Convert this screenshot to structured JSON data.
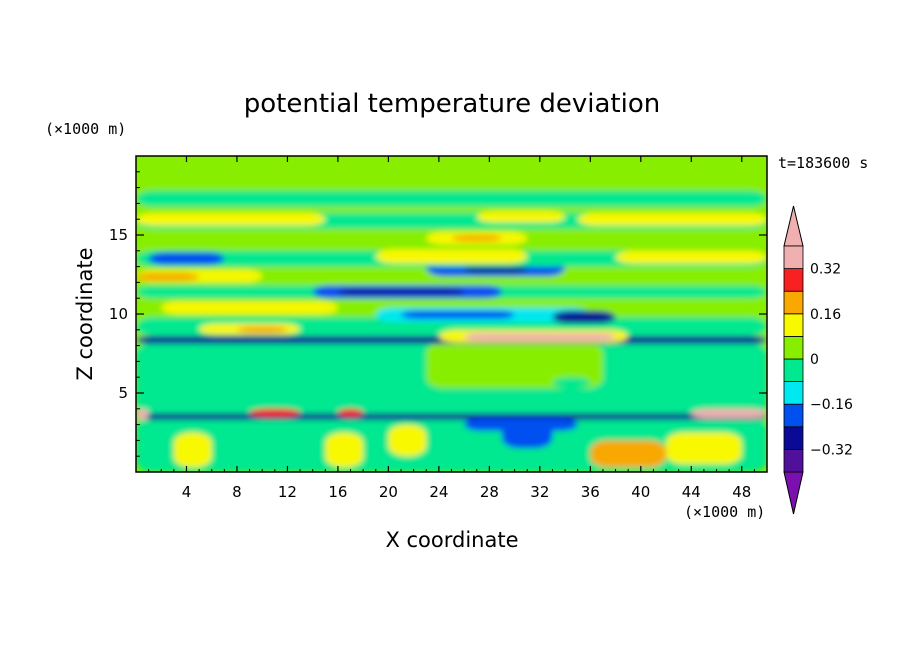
{
  "chart_data": {
    "type": "heatmap",
    "title": "potential temperature deviation",
    "xlabel": "X coordinate",
    "ylabel": "Z coordinate",
    "x_unit": "(×1000 m)",
    "y_unit": "(×1000 m)",
    "time_label": "t=183600 s",
    "xlim": [
      0,
      50
    ],
    "ylim": [
      0,
      20
    ],
    "x_ticks": [
      4,
      8,
      12,
      16,
      20,
      24,
      28,
      32,
      36,
      40,
      44,
      48
    ],
    "y_ticks": [
      5,
      10,
      15
    ],
    "x_tick_labels": [
      "4",
      "8",
      "12",
      "16",
      "20",
      "24",
      "28",
      "32",
      "36",
      "40",
      "44",
      "48"
    ],
    "y_tick_labels": [
      "5",
      "10",
      "15"
    ],
    "grid": false,
    "colorbar": {
      "placement": "right",
      "levels": [
        -0.4,
        -0.32,
        -0.24,
        -0.16,
        -0.08,
        0,
        0.08,
        0.16,
        0.24,
        0.32,
        0.4
      ],
      "tick_values": [
        -0.32,
        -0.16,
        0,
        0.16,
        0.32
      ],
      "tick_labels": [
        "−0.32",
        "−0.16",
        "0",
        "0.16",
        "0.32"
      ],
      "colors": [
        "#7a10b0",
        "#50109a",
        "#0a0a96",
        "#0050f0",
        "#00e8f0",
        "#00e890",
        "#88ee00",
        "#f8f800",
        "#f8a800",
        "#f82020",
        "#f0b0b0"
      ]
    },
    "regions": [
      {
        "x0": 0,
        "x1": 50,
        "z0": 0,
        "z1": 20,
        "v": 0.04
      },
      {
        "x0": 0,
        "x1": 50,
        "z0": 0,
        "z1": 3.5,
        "v": -0.04
      },
      {
        "x0": 0,
        "x1": 50,
        "z0": 3.5,
        "z1": 8.2,
        "v": -0.04
      },
      {
        "x0": 23,
        "x1": 37,
        "z0": 5.3,
        "z1": 8.2,
        "v": 0.04
      },
      {
        "x0": 33,
        "x1": 36,
        "z0": 5.3,
        "z1": 6,
        "v": -0.04
      },
      {
        "x0": 0,
        "x1": 50,
        "z0": 8.1,
        "z1": 8.6,
        "v": -0.28
      },
      {
        "x0": 0,
        "x1": 50,
        "z0": 8.6,
        "z1": 9.8,
        "v": -0.04
      },
      {
        "x0": 5,
        "x1": 13,
        "z0": 8.7,
        "z1": 9.4,
        "v": 0.12
      },
      {
        "x0": 8,
        "x1": 12,
        "z0": 8.8,
        "z1": 9.2,
        "v": 0.2
      },
      {
        "x0": 24,
        "x1": 39,
        "z0": 8.2,
        "z1": 9.0,
        "v": 0.12
      },
      {
        "x0": 26,
        "x1": 38,
        "z0": 8.3,
        "z1": 8.8,
        "v": 0.36
      },
      {
        "x0": 0,
        "x1": 50,
        "z0": 9.8,
        "z1": 11,
        "v": 0.04
      },
      {
        "x0": 2,
        "x1": 16,
        "z0": 10,
        "z1": 10.8,
        "v": 0.12
      },
      {
        "x0": 19,
        "x1": 36,
        "z0": 9.5,
        "z1": 10.4,
        "v": -0.12
      },
      {
        "x0": 21,
        "x1": 30,
        "z0": 9.7,
        "z1": 10.2,
        "v": -0.2
      },
      {
        "x0": 33,
        "x1": 38,
        "z0": 9.4,
        "z1": 10.2,
        "v": -0.28
      },
      {
        "x0": 0,
        "x1": 50,
        "z0": 11,
        "z1": 11.8,
        "v": -0.04
      },
      {
        "x0": 14,
        "x1": 29,
        "z0": 11.0,
        "z1": 11.8,
        "v": -0.2
      },
      {
        "x0": 16,
        "x1": 26,
        "z0": 11.2,
        "z1": 11.6,
        "v": -0.28
      },
      {
        "x0": 0,
        "x1": 50,
        "z0": 11.8,
        "z1": 12.8,
        "v": 0.04
      },
      {
        "x0": 0,
        "x1": 10,
        "z0": 12.0,
        "z1": 12.8,
        "v": 0.12
      },
      {
        "x0": 0,
        "x1": 5,
        "z0": 12.1,
        "z1": 12.6,
        "v": 0.2
      },
      {
        "x0": 23,
        "x1": 34,
        "z0": 12.4,
        "z1": 13.4,
        "v": -0.2
      },
      {
        "x0": 26,
        "x1": 31,
        "z0": 12.6,
        "z1": 13.1,
        "v": -0.28
      },
      {
        "x0": 0,
        "x1": 50,
        "z0": 13,
        "z1": 14,
        "v": -0.04
      },
      {
        "x0": 1,
        "x1": 7,
        "z0": 13.1,
        "z1": 13.9,
        "v": -0.2
      },
      {
        "x0": 19,
        "x1": 31,
        "z0": 13.2,
        "z1": 14.1,
        "v": 0.12
      },
      {
        "x0": 38,
        "x1": 50,
        "z0": 13.2,
        "z1": 14.0,
        "v": 0.12
      },
      {
        "x0": 0,
        "x1": 50,
        "z0": 14.1,
        "z1": 15.2,
        "v": 0.04
      },
      {
        "x0": 23,
        "x1": 31,
        "z0": 14.4,
        "z1": 15.2,
        "v": 0.12
      },
      {
        "x0": 25,
        "x1": 29,
        "z0": 14.6,
        "z1": 15.0,
        "v": 0.2
      },
      {
        "x0": 0,
        "x1": 50,
        "z0": 15.4,
        "z1": 16.4,
        "v": -0.04
      },
      {
        "x0": 0,
        "x1": 15,
        "z0": 15.6,
        "z1": 16.4,
        "v": 0.12
      },
      {
        "x0": 27,
        "x1": 34,
        "z0": 15.8,
        "z1": 16.5,
        "v": 0.12
      },
      {
        "x0": 35,
        "x1": 50,
        "z0": 15.6,
        "z1": 16.4,
        "v": 0.12
      },
      {
        "x0": 0,
        "x1": 50,
        "z0": 16.8,
        "z1": 17.8,
        "v": -0.04
      },
      {
        "x0": 0,
        "x1": 50,
        "z0": 18.2,
        "z1": 20,
        "v": 0.04
      },
      {
        "x0": 0,
        "x1": 50,
        "z0": 3.3,
        "z1": 3.7,
        "v": -0.28
      },
      {
        "x0": 0,
        "x1": 1,
        "z0": 3.3,
        "z1": 4.0,
        "v": 0.36
      },
      {
        "x0": 44,
        "x1": 50,
        "z0": 3.4,
        "z1": 4.0,
        "v": 0.36
      },
      {
        "x0": 9,
        "x1": 13,
        "z0": 3.5,
        "z1": 4.0,
        "v": 0.28
      },
      {
        "x0": 16,
        "x1": 18,
        "z0": 3.5,
        "z1": 4.0,
        "v": 0.28
      },
      {
        "x0": 26,
        "x1": 35,
        "z0": 2.6,
        "z1": 3.4,
        "v": -0.2
      },
      {
        "x0": 29,
        "x1": 33,
        "z0": 1.5,
        "z1": 3.2,
        "v": -0.2
      },
      {
        "x0": 3,
        "x1": 6,
        "z0": 0.3,
        "z1": 2.5,
        "v": 0.12
      },
      {
        "x0": 15,
        "x1": 18,
        "z0": 0.3,
        "z1": 2.5,
        "v": 0.12
      },
      {
        "x0": 20,
        "x1": 23,
        "z0": 1,
        "z1": 3,
        "v": 0.12
      },
      {
        "x0": 36,
        "x1": 42,
        "z0": 0.3,
        "z1": 2,
        "v": 0.2
      },
      {
        "x0": 42,
        "x1": 48,
        "z0": 0.5,
        "z1": 2.5,
        "v": 0.12
      }
    ]
  }
}
